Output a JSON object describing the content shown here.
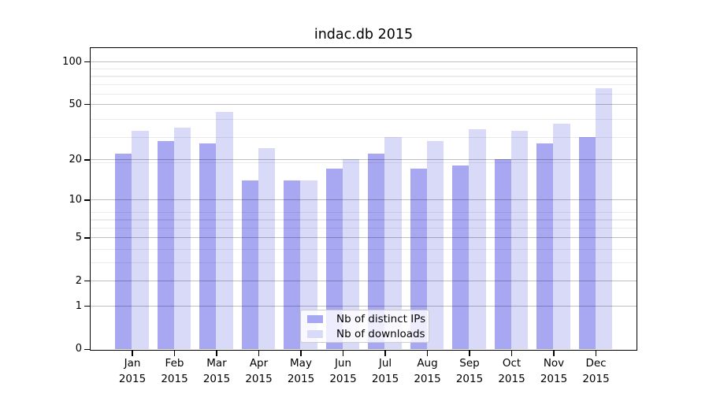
{
  "chart_data": {
    "type": "bar",
    "title": "indac.db 2015",
    "year": "2015",
    "months": [
      "Jan",
      "Feb",
      "Mar",
      "Apr",
      "May",
      "Jun",
      "Jul",
      "Aug",
      "Sep",
      "Oct",
      "Nov",
      "Dec"
    ],
    "series": [
      {
        "name": "Nb of distinct IPs",
        "color": "#a7a7f2",
        "values": [
          22,
          27,
          26,
          14,
          14,
          17,
          22,
          17,
          18,
          20,
          26,
          29
        ]
      },
      {
        "name": "Nb of downloads",
        "color": "#d9d9f8",
        "values": [
          32,
          34,
          44,
          24,
          14,
          20,
          29,
          27,
          33,
          32,
          36,
          65
        ]
      }
    ],
    "yscale": "log10(value+1)",
    "yticks": [
      0,
      1,
      2,
      5,
      10,
      20,
      50,
      100
    ],
    "minor_gridlines_axis_values": [
      4,
      5,
      7,
      8,
      9,
      20,
      30,
      40,
      60,
      70,
      80,
      90
    ],
    "ylim_top_axis": 128,
    "grid": true,
    "legend_position": "inside-bottom-center",
    "colors": {
      "axis": "#000000",
      "bar_distinct_ips": "#a7a7f2",
      "bar_downloads": "#d9d9f8",
      "major_grid": "#bfbfbf",
      "minor_grid": "#ebebeb"
    }
  }
}
